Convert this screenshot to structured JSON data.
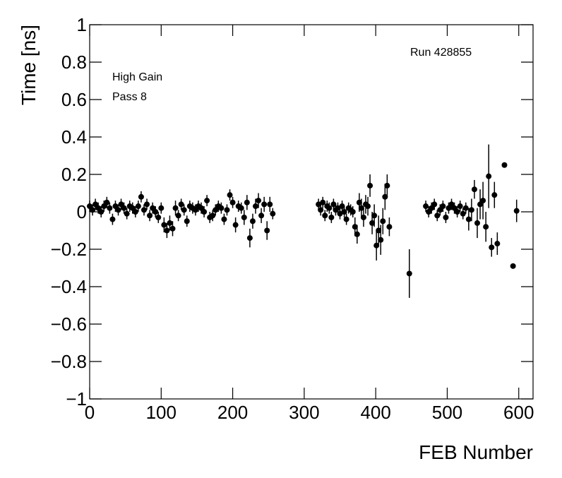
{
  "chart_data": {
    "type": "scatter",
    "x_label": "FEB Number",
    "y_label": "Time [ns]",
    "annotations": [
      "Run 428855",
      "High Gain",
      "Pass 8"
    ],
    "xlim": [
      0,
      620
    ],
    "ylim": [
      -1,
      1
    ],
    "xticks": [
      0,
      100,
      200,
      300,
      400,
      500,
      600
    ],
    "yticks": [
      {
        "value": -1,
        "label": "−1"
      },
      {
        "value": -0.8,
        "label": "−0.8"
      },
      {
        "value": -0.6,
        "label": "−0.6"
      },
      {
        "value": -0.4,
        "label": "−0.4"
      },
      {
        "value": -0.2,
        "label": "−0.2"
      },
      0,
      0.2,
      0.4,
      0.6,
      0.8,
      1
    ],
    "series": [
      {
        "color": "#000000",
        "x": [
          0,
          4,
          8,
          12,
          16,
          20,
          24,
          28,
          32,
          36,
          40,
          44,
          48,
          52,
          56,
          60,
          64,
          68,
          72,
          76,
          80,
          84,
          88,
          92,
          96,
          100,
          104,
          108,
          112,
          116,
          120,
          124,
          128,
          132,
          136,
          140,
          144,
          148,
          152,
          156,
          160,
          164,
          168,
          172,
          176,
          180,
          184,
          188,
          192,
          196,
          200,
          204,
          208,
          212,
          216,
          220,
          224,
          228,
          232,
          236,
          240,
          244,
          248,
          252,
          256,
          320,
          323,
          326,
          329,
          332,
          335,
          338,
          341,
          344,
          347,
          350,
          353,
          356,
          359,
          362,
          365,
          368,
          371,
          374,
          377,
          380,
          383,
          386,
          389,
          392,
          395,
          398,
          401,
          404,
          407,
          410,
          413,
          416,
          419,
          447,
          470,
          474,
          478,
          482,
          486,
          490,
          494,
          498,
          502,
          506,
          510,
          514,
          518,
          522,
          526,
          530,
          534,
          538,
          542,
          546,
          550,
          554,
          558,
          562,
          566,
          570,
          580,
          592,
          597
        ],
        "values": [
          0.03,
          0.01,
          0.04,
          0.02,
          0.0,
          0.03,
          0.05,
          0.02,
          -0.04,
          0.03,
          0.01,
          0.04,
          0.02,
          -0.01,
          0.03,
          0.02,
          0.0,
          0.03,
          0.08,
          0.01,
          0.04,
          -0.02,
          0.02,
          0.0,
          -0.03,
          0.02,
          -0.07,
          -0.1,
          -0.06,
          -0.09,
          0.02,
          -0.02,
          0.04,
          0.01,
          -0.05,
          0.03,
          0.02,
          0.01,
          0.03,
          0.02,
          0.0,
          0.06,
          -0.03,
          -0.02,
          0.01,
          0.03,
          0.02,
          -0.04,
          0.01,
          0.09,
          0.05,
          -0.07,
          0.03,
          0.02,
          -0.03,
          0.05,
          -0.14,
          -0.05,
          0.03,
          0.06,
          -0.02,
          0.04,
          -0.1,
          0.04,
          -0.01,
          0.04,
          0.01,
          0.05,
          -0.02,
          0.03,
          0.02,
          -0.03,
          0.04,
          0.01,
          0.02,
          -0.01,
          0.03,
          0.0,
          -0.04,
          0.02,
          0.01,
          0.0,
          -0.08,
          -0.12,
          0.05,
          0.02,
          -0.03,
          0.04,
          0.03,
          0.14,
          -0.06,
          -0.02,
          -0.18,
          -0.1,
          -0.15,
          -0.05,
          0.08,
          0.14,
          -0.08,
          -0.33,
          0.03,
          0.0,
          0.02,
          0.04,
          -0.02,
          0.01,
          0.03,
          -0.03,
          0.02,
          0.04,
          0.02,
          0.0,
          0.03,
          -0.01,
          0.02,
          -0.04,
          0.01,
          0.12,
          -0.06,
          0.04,
          0.06,
          -0.08,
          0.19,
          -0.19,
          0.09,
          -0.17,
          0.25,
          -0.29,
          0.005
        ],
        "errors": [
          0.03,
          0.03,
          0.03,
          0.03,
          0.03,
          0.03,
          0.03,
          0.03,
          0.03,
          0.03,
          0.03,
          0.03,
          0.03,
          0.03,
          0.03,
          0.03,
          0.03,
          0.03,
          0.03,
          0.03,
          0.03,
          0.03,
          0.03,
          0.03,
          0.03,
          0.03,
          0.04,
          0.04,
          0.04,
          0.04,
          0.04,
          0.03,
          0.03,
          0.03,
          0.03,
          0.03,
          0.03,
          0.03,
          0.03,
          0.03,
          0.03,
          0.03,
          0.03,
          0.03,
          0.03,
          0.03,
          0.03,
          0.03,
          0.03,
          0.03,
          0.03,
          0.04,
          0.03,
          0.03,
          0.04,
          0.04,
          0.05,
          0.04,
          0.04,
          0.04,
          0.04,
          0.04,
          0.05,
          0.04,
          0.03,
          0.03,
          0.03,
          0.03,
          0.03,
          0.03,
          0.03,
          0.03,
          0.03,
          0.03,
          0.03,
          0.03,
          0.03,
          0.03,
          0.03,
          0.03,
          0.03,
          0.03,
          0.05,
          0.05,
          0.05,
          0.05,
          0.05,
          0.05,
          0.05,
          0.06,
          0.06,
          0.06,
          0.08,
          0.08,
          0.08,
          0.07,
          0.07,
          0.06,
          0.05,
          0.13,
          0.03,
          0.03,
          0.03,
          0.03,
          0.03,
          0.03,
          0.03,
          0.03,
          0.03,
          0.03,
          0.03,
          0.03,
          0.03,
          0.03,
          0.03,
          0.06,
          0.06,
          0.05,
          0.08,
          0.08,
          0.1,
          0.08,
          0.17,
          0.05,
          0.07,
          0.06,
          0.01,
          0.01,
          0.06
        ]
      }
    ]
  }
}
